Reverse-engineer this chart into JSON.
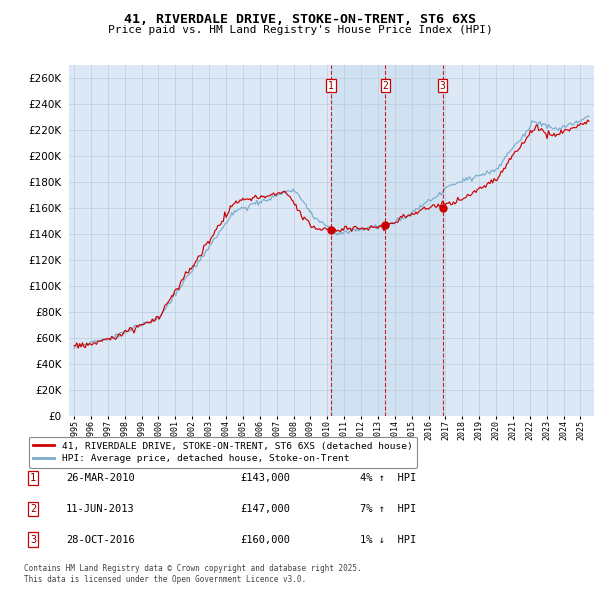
{
  "title": "41, RIVERDALE DRIVE, STOKE-ON-TRENT, ST6 6XS",
  "subtitle": "Price paid vs. HM Land Registry's House Price Index (HPI)",
  "yticks": [
    0,
    20000,
    40000,
    60000,
    80000,
    100000,
    120000,
    140000,
    160000,
    180000,
    200000,
    220000,
    240000,
    260000
  ],
  "ylim": [
    0,
    270000
  ],
  "xlim_start": 1994.7,
  "xlim_end": 2025.8,
  "red_line_color": "#cc0000",
  "blue_line_color": "#7aaccc",
  "grid_color": "#bbccdd",
  "background_color": "#ffffff",
  "plot_bg_color": "#dce8f5",
  "shade_color": "#c8ddf0",
  "transactions": [
    {
      "num": 1,
      "date_str": "26-MAR-2010",
      "price": 143000,
      "pct": "4%",
      "dir": "↑",
      "year": 2010.23
    },
    {
      "num": 2,
      "date_str": "11-JUN-2013",
      "price": 147000,
      "pct": "7%",
      "dir": "↑",
      "year": 2013.44
    },
    {
      "num": 3,
      "date_str": "28-OCT-2016",
      "price": 160000,
      "pct": "1%",
      "dir": "↓",
      "year": 2016.83
    }
  ],
  "legend_label_red": "41, RIVERDALE DRIVE, STOKE-ON-TRENT, ST6 6XS (detached house)",
  "legend_label_blue": "HPI: Average price, detached house, Stoke-on-Trent",
  "footer_line1": "Contains HM Land Registry data © Crown copyright and database right 2025.",
  "footer_line2": "This data is licensed under the Open Government Licence v3.0."
}
